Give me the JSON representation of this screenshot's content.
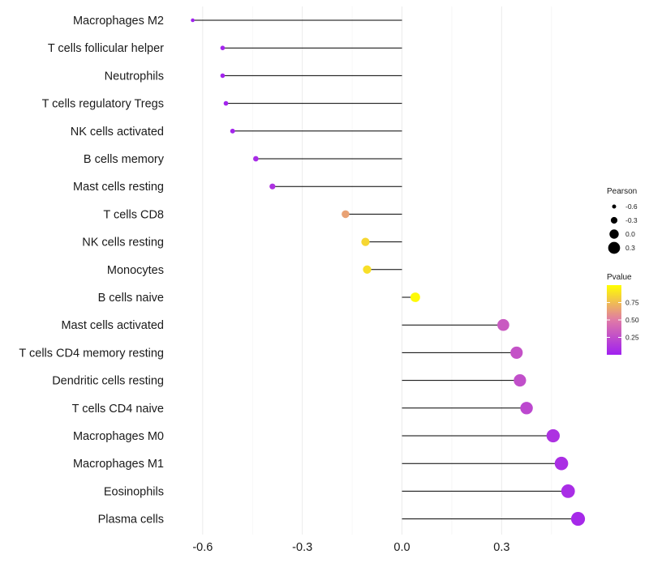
{
  "chart_data": {
    "type": "lollipop",
    "title": "",
    "xlabel": "",
    "ylabel": "",
    "xlim": [
      -0.69,
      0.58
    ],
    "x_ticks": [
      -0.6,
      -0.3,
      0.0,
      0.3
    ],
    "x_tick_labels": [
      "-0.6",
      "-0.3",
      "0.0",
      "0.3"
    ],
    "grid": true,
    "categories": [
      "Macrophages M2",
      "T cells follicular helper",
      "Neutrophils",
      "T cells regulatory  Tregs",
      "NK cells activated",
      "B cells memory",
      "Mast cells resting",
      "T cells CD8",
      "NK cells resting",
      "Monocytes",
      "B cells naive",
      "Mast cells activated",
      "T cells CD4 memory resting",
      "Dendritic cells resting",
      "T cells CD4 naive",
      "Macrophages M0",
      "Macrophages M1",
      "Eosinophils",
      "Plasma cells"
    ],
    "pearson": [
      -0.63,
      -0.54,
      -0.54,
      -0.53,
      -0.51,
      -0.44,
      -0.39,
      -0.17,
      -0.11,
      -0.105,
      0.04,
      0.305,
      0.345,
      0.355,
      0.375,
      0.455,
      0.48,
      0.5,
      0.53
    ],
    "pvalue": [
      0.01,
      0.02,
      0.02,
      0.02,
      0.03,
      0.06,
      0.1,
      0.65,
      0.85,
      0.88,
      0.98,
      0.32,
      0.28,
      0.26,
      0.22,
      0.1,
      0.08,
      0.07,
      0.05
    ],
    "legend": {
      "size_title": "Pearson",
      "size_labels": [
        "-0.6",
        "-0.3",
        "0.0",
        "0.3"
      ],
      "size_values": [
        -0.6,
        -0.3,
        0.0,
        0.3
      ],
      "color_title": "Pvalue",
      "color_labels": [
        "0.75",
        "0.50",
        "0.25"
      ],
      "color_values": [
        0.75,
        0.5,
        0.25
      ],
      "color_range": [
        0.0,
        1.0
      ],
      "color_low": "#a020f0",
      "color_high": "#ffff00",
      "placement": "right"
    }
  }
}
